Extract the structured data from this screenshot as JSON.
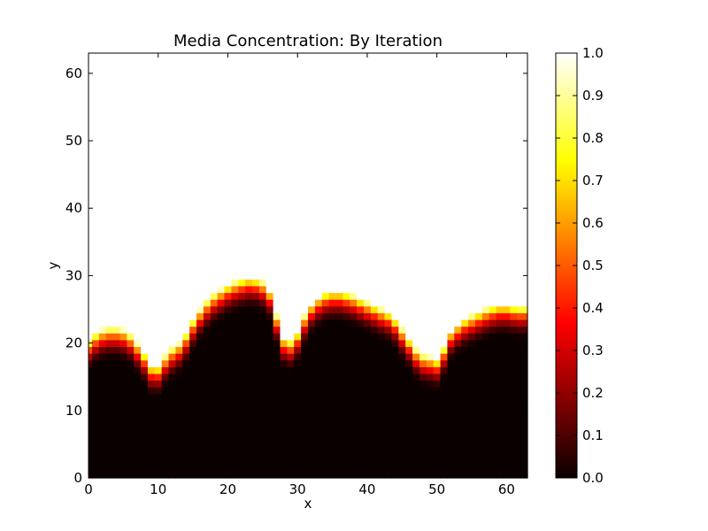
{
  "chart_data": {
    "type": "heatmap",
    "title": "Media Concentration: By Iteration",
    "xlabel": "x",
    "ylabel": "y",
    "xlim": [
      0,
      63
    ],
    "ylim": [
      0,
      63
    ],
    "xticks": [
      "0",
      "10",
      "20",
      "30",
      "40",
      "50",
      "60"
    ],
    "yticks": [
      "0",
      "10",
      "20",
      "30",
      "40",
      "50",
      "60"
    ],
    "colormap": "hot",
    "colorbar": {
      "range": [
        0.0,
        1.0
      ],
      "ticks": [
        "0.0",
        "0.1",
        "0.2",
        "0.3",
        "0.4",
        "0.5",
        "0.6",
        "0.7",
        "0.8",
        "0.9",
        "1.0"
      ]
    },
    "grid": false,
    "front_profile": {
      "description_units": "y value of the depleted-front boundary at each x (data units)",
      "x": [
        0,
        2,
        4,
        6,
        8,
        10,
        12,
        14,
        16,
        18,
        20,
        22,
        24,
        26,
        27,
        28,
        29,
        30,
        32,
        34,
        36,
        38,
        40,
        42,
        44,
        46,
        48,
        50,
        51,
        52,
        54,
        56,
        58,
        60,
        62,
        63
      ],
      "y": [
        20.5,
        22.5,
        23,
        22.5,
        20,
        16.5,
        19.5,
        21,
        25,
        27.5,
        29,
        30,
        30.5,
        29.5,
        27.5,
        22,
        21,
        21,
        26,
        28,
        28.5,
        28,
        27,
        26,
        25,
        22,
        19,
        18.5,
        18,
        22,
        24,
        25,
        26,
        26.5,
        26,
        26
      ]
    },
    "front_width": 5
  }
}
